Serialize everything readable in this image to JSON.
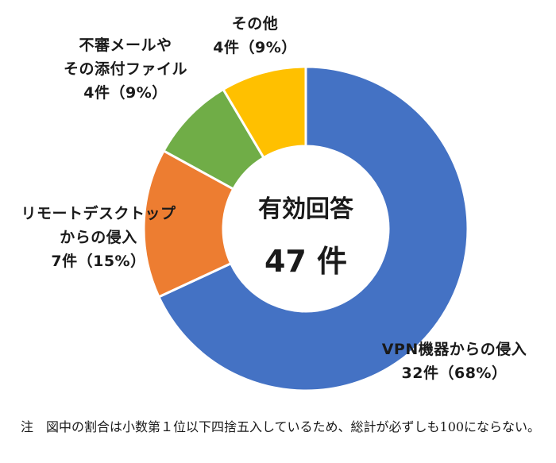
{
  "chart_data": {
    "type": "pie",
    "donut": true,
    "total_label": "有効回答",
    "total_value": "47 件",
    "categories": [
      "VPN機器からの侵入",
      "リモートデスクトップからの侵入",
      "不審メールやその添付ファイル",
      "その他"
    ],
    "counts": [
      32,
      7,
      4,
      4
    ],
    "percentages": [
      68,
      15,
      9,
      9
    ],
    "colors": [
      "#4472C4",
      "#ED7D31",
      "#70AD47",
      "#FFC000"
    ],
    "labels": [
      {
        "lines": [
          "VPN機器からの侵入",
          "32件（68%）"
        ]
      },
      {
        "lines": [
          "リモートデスクトップ",
          "からの侵入",
          "7件（15%）"
        ]
      },
      {
        "lines": [
          "不審メールや",
          "その添付ファイル",
          "4件（9%）"
        ]
      },
      {
        "lines": [
          "その他",
          "4件（9%）"
        ]
      }
    ]
  },
  "note": "注　図中の割合は小数第１位以下四捨五入しているため、総計が必ずしも100にならない。"
}
